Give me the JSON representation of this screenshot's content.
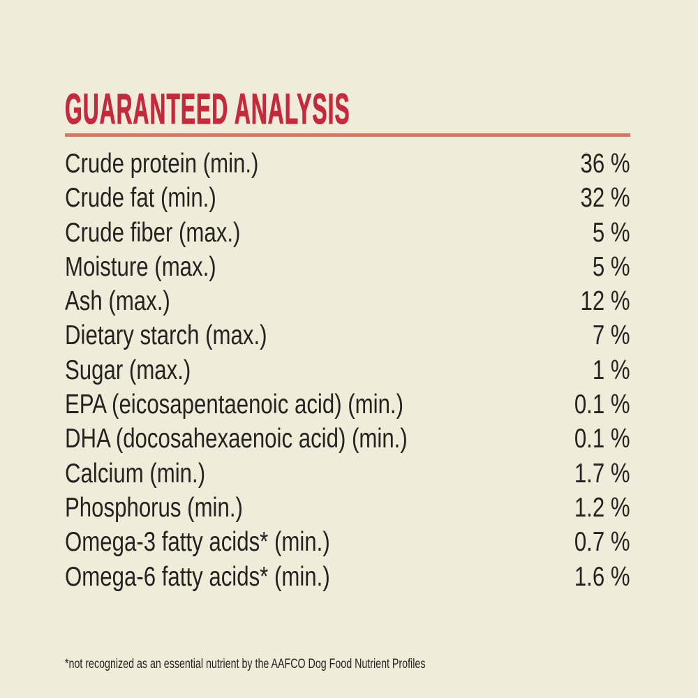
{
  "page": {
    "background_color": "#EFECD9",
    "title_color": "#C42A3C",
    "divider_color": "#DF7463",
    "text_color": "#242320"
  },
  "header": {
    "title": "GUARANTEED ANALYSIS"
  },
  "analysis_table": {
    "rows": [
      {
        "label": "Crude protein (min.)",
        "value": "36 %"
      },
      {
        "label": "Crude fat (min.)",
        "value": "32 %"
      },
      {
        "label": "Crude fiber (max.)",
        "value": "5 %"
      },
      {
        "label": "Moisture (max.)",
        "value": "5 %"
      },
      {
        "label": "Ash (max.)",
        "value": "12 %"
      },
      {
        "label": "Dietary starch (max.)",
        "value": "7 %"
      },
      {
        "label": "Sugar (max.)",
        "value": "1 %"
      },
      {
        "label": "EPA (eicosapentaenoic acid) (min.)",
        "value": "0.1 %"
      },
      {
        "label": "DHA (docosahexaenoic acid) (min.)",
        "value": "0.1 %"
      },
      {
        "label": "Calcium (min.)",
        "value": "1.7 %"
      },
      {
        "label": "Phosphorus (min.)",
        "value": "1.2 %"
      },
      {
        "label": "Omega-3 fatty acids* (min.)",
        "value": "0.7 %"
      },
      {
        "label": "Omega-6 fatty acids* (min.)",
        "value": "1.6 %"
      }
    ]
  },
  "footnote": {
    "text": "*not recognized as an essential nutrient by the AAFCO Dog Food Nutrient Profiles"
  }
}
